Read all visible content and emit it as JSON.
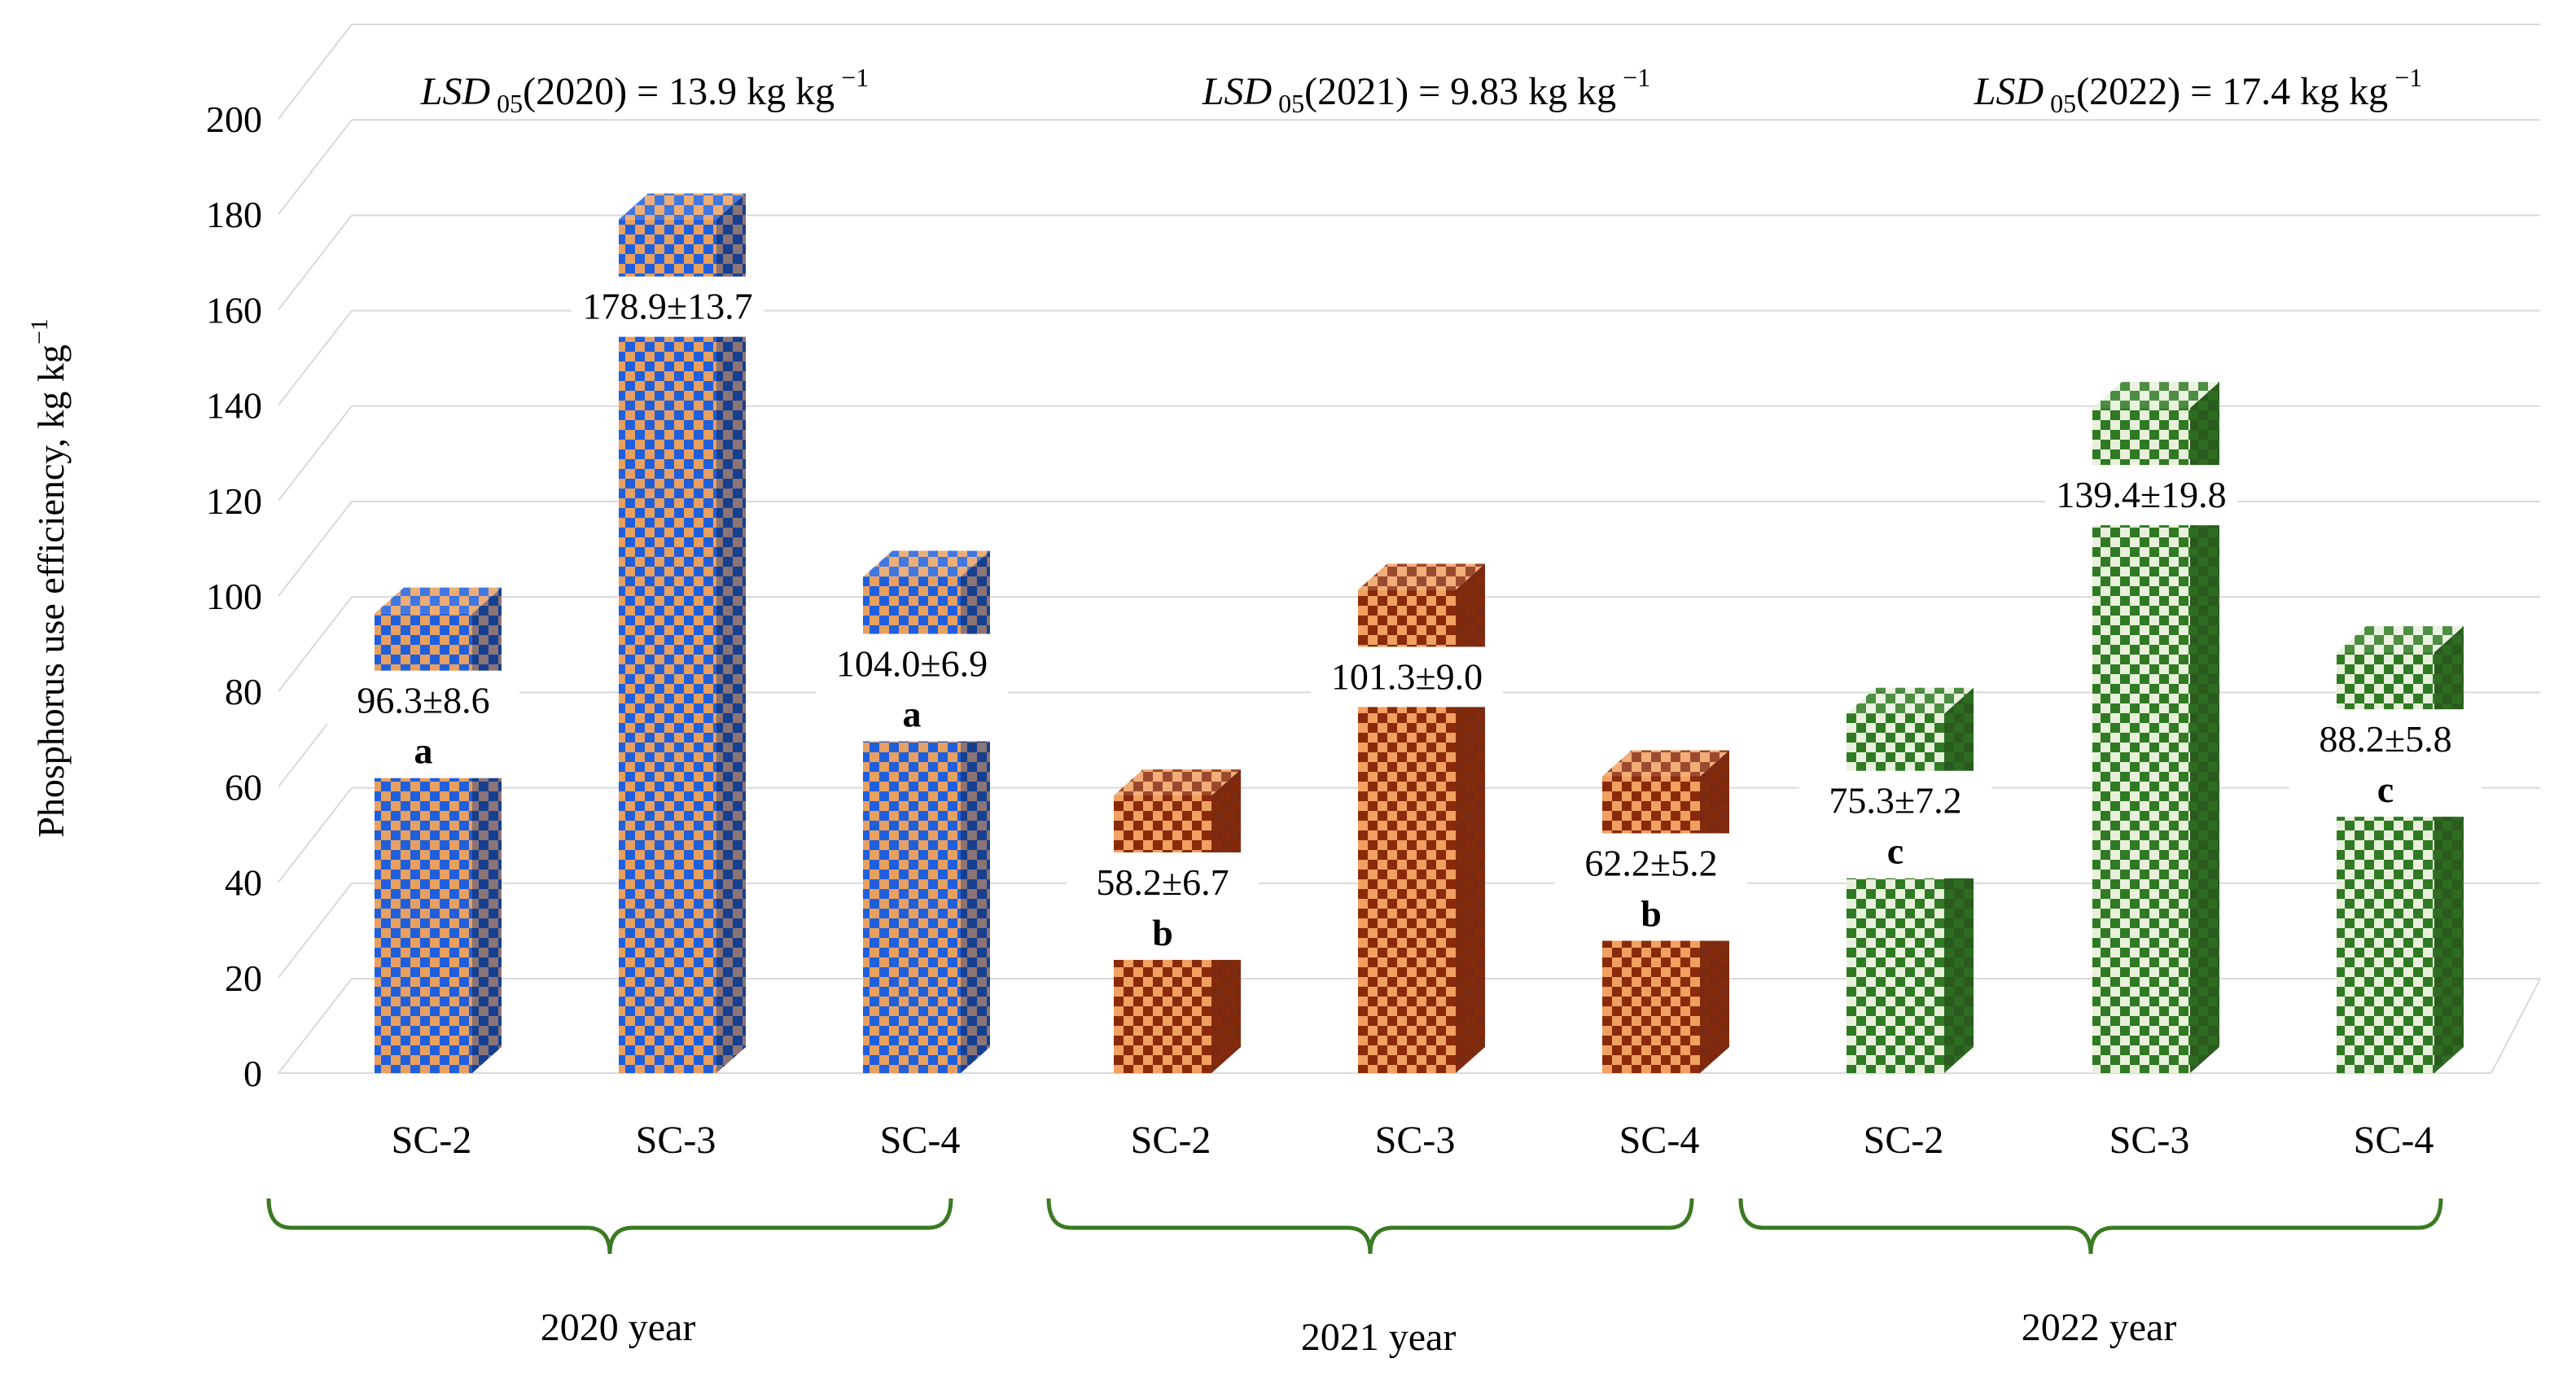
{
  "chart_data": {
    "type": "bar",
    "style": "3d-bar",
    "ylabel": "Phosphorus use efficiency, kg kg",
    "ylabel_sup": "−1",
    "ylim": [
      0,
      200
    ],
    "yticks": [
      0,
      20,
      40,
      60,
      80,
      100,
      120,
      140,
      160,
      180,
      200
    ],
    "grid": true,
    "groups": [
      {
        "name": "2020 year",
        "color": "#1f5fdc",
        "check_color": "#e8a060",
        "side_color": "#163f8f",
        "lsd": {
          "prefix": "LSD",
          "sub": "05",
          "body": "(2020) = 13.9 kg kg",
          "sup": "−1"
        },
        "bars": [
          {
            "category": "SC-2",
            "value": 96.3,
            "sd": 8.6,
            "label": "96.3±8.6",
            "letter": "a"
          },
          {
            "category": "SC-3",
            "value": 178.9,
            "sd": 13.7,
            "label": "178.9±13.7",
            "letter": ""
          },
          {
            "category": "SC-4",
            "value": 104.0,
            "sd": 6.9,
            "label": "104.0±6.9",
            "letter": "a"
          }
        ]
      },
      {
        "name": "2021 year",
        "color": "#f0a060",
        "check_color": "#8a2a0a",
        "side_color": "#7a2a10",
        "lsd": {
          "prefix": "LSD",
          "sub": "05",
          "body": "(2021) = 9.83 kg kg",
          "sup": "−1"
        },
        "bars": [
          {
            "category": "SC-2",
            "value": 58.2,
            "sd": 6.7,
            "label": "58.2±6.7",
            "letter": "b"
          },
          {
            "category": "SC-3",
            "value": 101.3,
            "sd": 9.0,
            "label": "101.3±9.0",
            "letter": ""
          },
          {
            "category": "SC-4",
            "value": 62.2,
            "sd": 5.2,
            "label": "62.2±5.2",
            "letter": "b"
          }
        ]
      },
      {
        "name": "2022 year",
        "color": "#e8f0dc",
        "check_color": "#2f7a22",
        "side_color": "#2a5a1e",
        "lsd": {
          "prefix": "LSD",
          "sub": "05",
          "body": "(2022) = 17.4 kg kg",
          "sup": "−1"
        },
        "bars": [
          {
            "category": "SC-2",
            "value": 75.3,
            "sd": 7.2,
            "label": "75.3±7.2",
            "letter": "c"
          },
          {
            "category": "SC-3",
            "value": 139.4,
            "sd": 19.8,
            "label": "139.4±19.8",
            "letter": ""
          },
          {
            "category": "SC-4",
            "value": 88.2,
            "sd": 5.8,
            "label": "88.2±5.8",
            "letter": "c"
          }
        ]
      }
    ]
  }
}
